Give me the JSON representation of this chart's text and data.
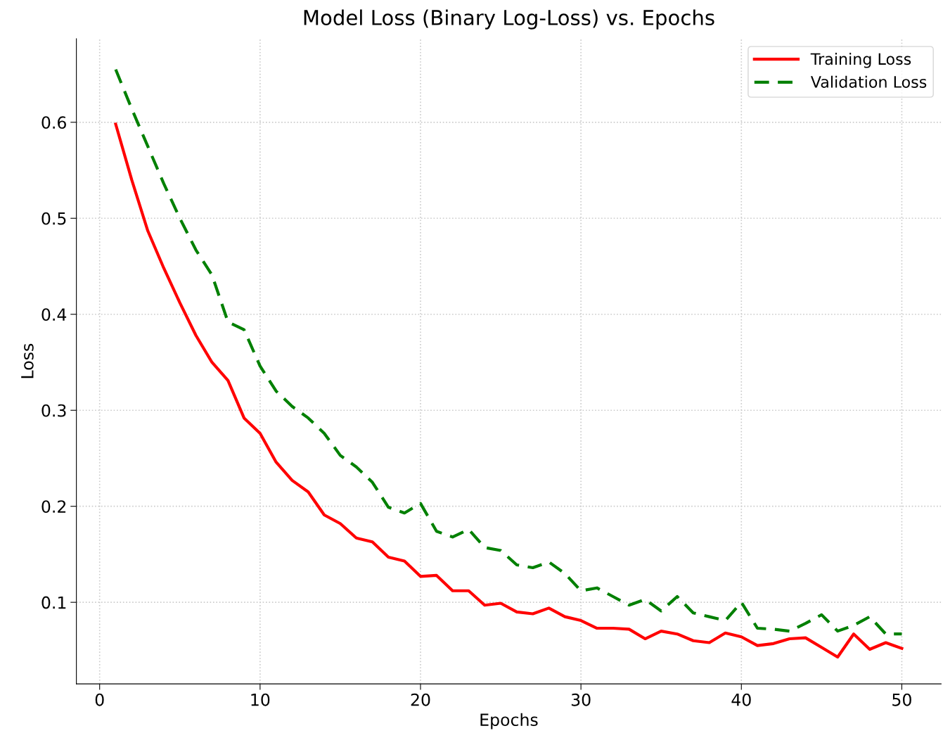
{
  "chart_data": {
    "type": "line",
    "title": "Model Loss (Binary Log-Loss) vs. Epochs",
    "xlabel": "Epochs",
    "ylabel": "Loss",
    "x": [
      1,
      2,
      3,
      4,
      5,
      6,
      7,
      8,
      9,
      10,
      11,
      12,
      13,
      14,
      15,
      16,
      17,
      18,
      19,
      20,
      21,
      22,
      23,
      24,
      25,
      26,
      27,
      28,
      29,
      30,
      31,
      32,
      33,
      34,
      35,
      36,
      37,
      38,
      39,
      40,
      41,
      42,
      43,
      44,
      45,
      46,
      47,
      48,
      49,
      50
    ],
    "series": [
      {
        "name": "Training Loss",
        "color": "#ff0000",
        "line_style": "solid",
        "values": [
          0.598,
          0.54,
          0.487,
          0.448,
          0.412,
          0.378,
          0.35,
          0.331,
          0.292,
          0.276,
          0.246,
          0.227,
          0.215,
          0.191,
          0.182,
          0.167,
          0.163,
          0.147,
          0.143,
          0.127,
          0.128,
          0.112,
          0.112,
          0.097,
          0.099,
          0.09,
          0.088,
          0.094,
          0.085,
          0.081,
          0.073,
          0.073,
          0.072,
          0.062,
          0.07,
          0.067,
          0.06,
          0.058,
          0.068,
          0.064,
          0.055,
          0.057,
          0.062,
          0.063,
          0.053,
          0.043,
          0.067,
          0.051,
          0.058,
          0.052
        ]
      },
      {
        "name": "Validation Loss",
        "color": "#008000",
        "line_style": "dashed",
        "values": [
          0.655,
          0.614,
          0.575,
          0.536,
          0.5,
          0.467,
          0.441,
          0.392,
          0.384,
          0.346,
          0.32,
          0.304,
          0.292,
          0.276,
          0.253,
          0.241,
          0.225,
          0.199,
          0.193,
          0.203,
          0.174,
          0.168,
          0.176,
          0.157,
          0.154,
          0.139,
          0.136,
          0.142,
          0.13,
          0.112,
          0.115,
          0.106,
          0.097,
          0.103,
          0.091,
          0.106,
          0.089,
          0.085,
          0.081,
          0.1,
          0.073,
          0.072,
          0.07,
          0.078,
          0.087,
          0.07,
          0.076,
          0.085,
          0.067,
          0.067
        ]
      }
    ],
    "xlim": [
      -1.45,
      52.45
    ],
    "ylim": [
      0.015,
      0.687
    ],
    "xticks": [
      0,
      10,
      20,
      30,
      40,
      50
    ],
    "yticks": [
      0.1,
      0.2,
      0.3,
      0.4,
      0.5,
      0.6
    ],
    "grid": true,
    "legend": "top right",
    "marker": "none"
  }
}
